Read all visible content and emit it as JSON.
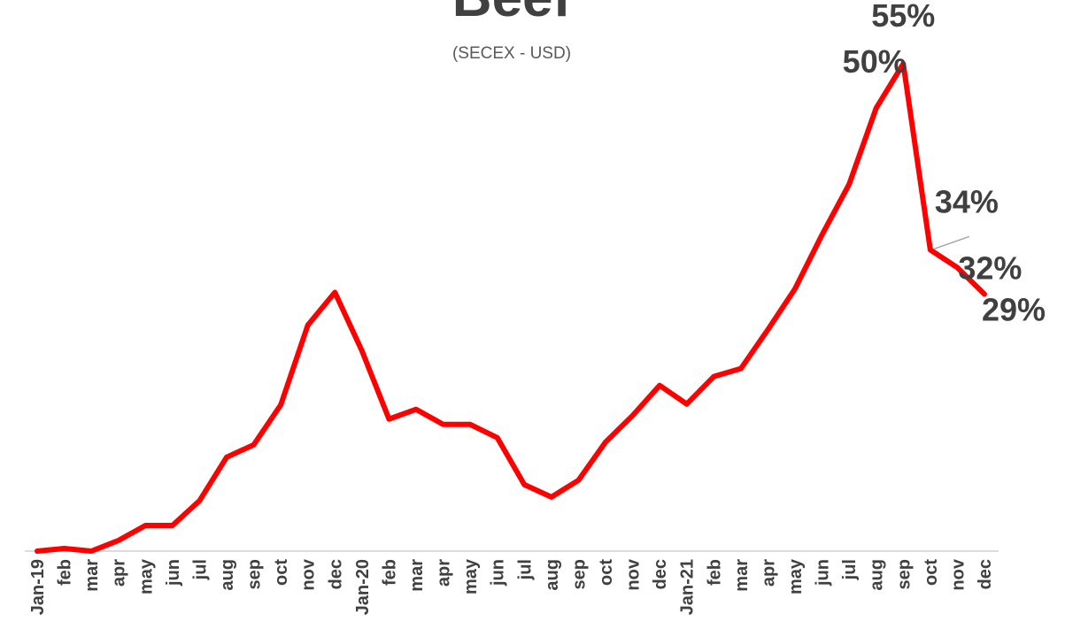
{
  "chart_data": {
    "type": "line",
    "title": "Beef",
    "subtitle": "(SECEX - USD)",
    "categories": [
      "Jan-19",
      "feb",
      "mar",
      "apr",
      "may",
      "jun",
      "jul",
      "aug",
      "sep",
      "oct",
      "nov",
      "dec",
      "Jan-20",
      "feb",
      "mar",
      "apr",
      "may",
      "jun",
      "jul",
      "aug",
      "sep",
      "oct",
      "nov",
      "dec",
      "Jan-21",
      "feb",
      "mar",
      "apr",
      "may",
      "jun",
      "jul",
      "aug",
      "sep",
      "oct",
      "nov",
      "dec"
    ],
    "series": [
      {
        "name": "Beef",
        "color": "#ff0000",
        "values": [
          0,
          0.3,
          0,
          1.2,
          2.9,
          2.9,
          5.7,
          10.6,
          12.0,
          16.5,
          25.5,
          29.2,
          22.6,
          14.9,
          16.0,
          14.3,
          14.3,
          12.8,
          7.5,
          6.1,
          8.0,
          12.3,
          15.3,
          18.7,
          16.6,
          19.7,
          20.6,
          25.0,
          29.6,
          35.7,
          41.4,
          50,
          55,
          34,
          32,
          29
        ],
        "value_labels": [
          null,
          null,
          null,
          null,
          null,
          null,
          null,
          null,
          null,
          null,
          null,
          null,
          null,
          null,
          null,
          null,
          null,
          null,
          null,
          null,
          null,
          null,
          null,
          null,
          null,
          null,
          null,
          null,
          null,
          null,
          null,
          "50%",
          "55%",
          "34%",
          "32%",
          "29%"
        ]
      }
    ],
    "ylim": [
      0,
      60
    ]
  }
}
